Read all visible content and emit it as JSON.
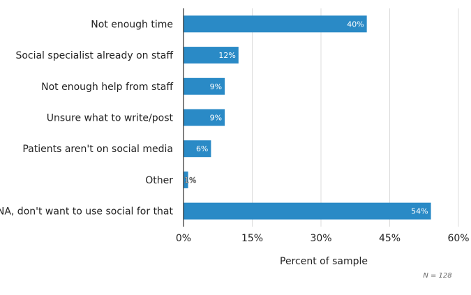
{
  "chart_data": {
    "type": "bar",
    "orientation": "horizontal",
    "categories": [
      "Not enough time",
      "Social specialist already on staff",
      "Not enough help from staff",
      "Unsure what to write/post",
      "Patients aren't on social media",
      "Other",
      "NA, don't want to use social for that"
    ],
    "values": [
      40,
      12,
      9,
      9,
      6,
      1,
      54
    ],
    "data_labels": [
      "40%",
      "12%",
      "9%",
      "9%",
      "6%",
      "1%",
      "54%"
    ],
    "xlabel": "Percent of sample",
    "ylabel": "",
    "xlim": [
      0,
      60
    ],
    "xticks": [
      0,
      15,
      30,
      45,
      60
    ],
    "xtick_labels": [
      "0%",
      "15%",
      "30%",
      "45%",
      "60%"
    ],
    "grid": true,
    "note": "N = 128",
    "bar_color": "#2a8ac6"
  }
}
